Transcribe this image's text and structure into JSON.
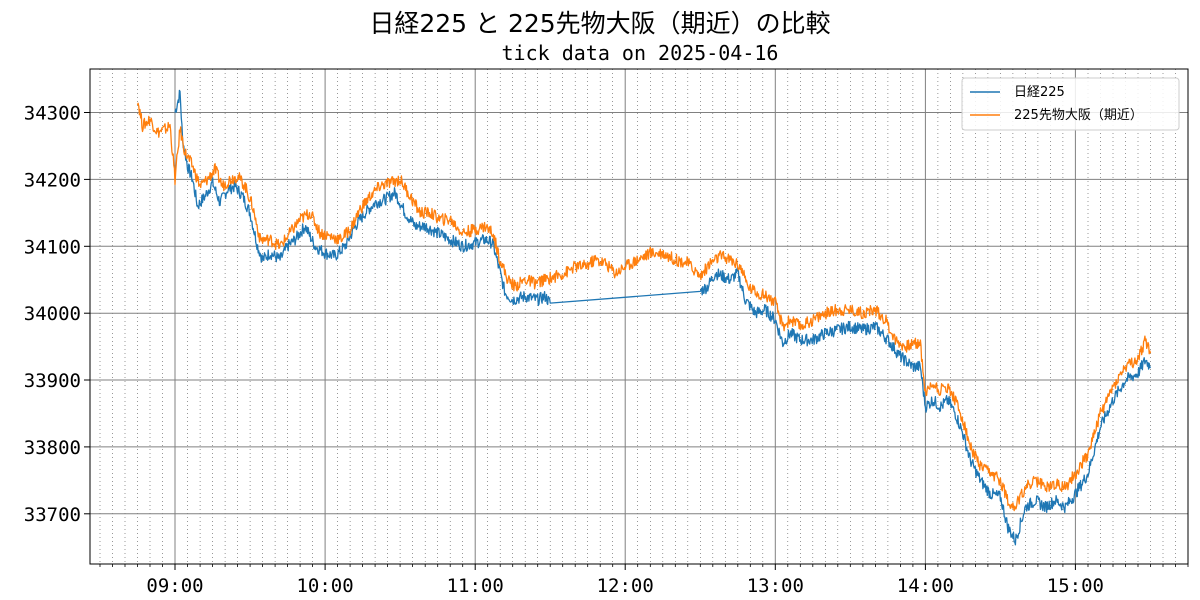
{
  "chart_data": {
    "type": "line",
    "title": "日経225 と 225先物大阪（期近）の比較",
    "subtitle": "tick data on 2025-04-16",
    "xlabel": "",
    "ylabel": "",
    "x_ticks": [
      "09:00",
      "10:00",
      "11:00",
      "12:00",
      "13:00",
      "14:00",
      "15:00"
    ],
    "y_ticks": [
      33700,
      33800,
      33900,
      34000,
      34100,
      34200,
      34300
    ],
    "xlim": [
      "08:26",
      "15:45"
    ],
    "ylim": [
      33625,
      34365
    ],
    "grid": true,
    "minor_grid": "x every 5 min (dotted)",
    "legend_position": "top-right",
    "series": [
      {
        "name": "日経225",
        "color": "#1f77b4",
        "points": [
          [
            "09:00",
            34300
          ],
          [
            "09:02",
            34330
          ],
          [
            "09:03",
            34260
          ],
          [
            "09:05",
            34220
          ],
          [
            "09:07",
            34200
          ],
          [
            "09:09",
            34160
          ],
          [
            "09:12",
            34175
          ],
          [
            "09:15",
            34195
          ],
          [
            "09:18",
            34165
          ],
          [
            "09:21",
            34185
          ],
          [
            "09:24",
            34190
          ],
          [
            "09:27",
            34175
          ],
          [
            "09:30",
            34150
          ],
          [
            "09:33",
            34100
          ],
          [
            "09:35",
            34080
          ],
          [
            "09:38",
            34090
          ],
          [
            "09:42",
            34080
          ],
          [
            "09:45",
            34100
          ],
          [
            "09:48",
            34110
          ],
          [
            "09:52",
            34130
          ],
          [
            "09:56",
            34100
          ],
          [
            "10:00",
            34090
          ],
          [
            "10:04",
            34085
          ],
          [
            "10:08",
            34100
          ],
          [
            "10:12",
            34130
          ],
          [
            "10:16",
            34150
          ],
          [
            "10:20",
            34165
          ],
          [
            "10:24",
            34170
          ],
          [
            "10:28",
            34180
          ],
          [
            "10:32",
            34150
          ],
          [
            "10:36",
            34130
          ],
          [
            "10:40",
            34130
          ],
          [
            "10:45",
            34120
          ],
          [
            "10:50",
            34110
          ],
          [
            "10:55",
            34100
          ],
          [
            "11:00",
            34105
          ],
          [
            "11:04",
            34110
          ],
          [
            "11:07",
            34105
          ],
          [
            "11:10",
            34060
          ],
          [
            "11:12",
            34030
          ],
          [
            "11:15",
            34020
          ],
          [
            "11:20",
            34025
          ],
          [
            "11:25",
            34020
          ],
          [
            "11:28",
            34025
          ],
          [
            "11:30",
            34015
          ],
          [
            "12:30",
            34033
          ],
          [
            "12:33",
            34040
          ],
          [
            "12:36",
            34060
          ],
          [
            "12:39",
            34055
          ],
          [
            "12:42",
            34050
          ],
          [
            "12:45",
            34060
          ],
          [
            "12:48",
            34020
          ],
          [
            "12:52",
            34000
          ],
          [
            "12:56",
            34005
          ],
          [
            "13:00",
            33990
          ],
          [
            "13:03",
            33955
          ],
          [
            "13:06",
            33970
          ],
          [
            "13:10",
            33960
          ],
          [
            "13:15",
            33960
          ],
          [
            "13:20",
            33970
          ],
          [
            "13:25",
            33975
          ],
          [
            "13:30",
            33980
          ],
          [
            "13:35",
            33975
          ],
          [
            "13:40",
            33980
          ],
          [
            "13:45",
            33960
          ],
          [
            "13:50",
            33935
          ],
          [
            "13:55",
            33920
          ],
          [
            "13:58",
            33920
          ],
          [
            "14:00",
            33860
          ],
          [
            "14:03",
            33870
          ],
          [
            "14:06",
            33860
          ],
          [
            "14:09",
            33870
          ],
          [
            "14:12",
            33850
          ],
          [
            "14:15",
            33820
          ],
          [
            "14:18",
            33780
          ],
          [
            "14:22",
            33750
          ],
          [
            "14:26",
            33730
          ],
          [
            "14:30",
            33725
          ],
          [
            "14:33",
            33680
          ],
          [
            "14:36",
            33660
          ],
          [
            "14:40",
            33710
          ],
          [
            "14:44",
            33720
          ],
          [
            "14:48",
            33710
          ],
          [
            "14:52",
            33720
          ],
          [
            "14:56",
            33710
          ],
          [
            "15:00",
            33730
          ],
          [
            "15:05",
            33760
          ],
          [
            "15:10",
            33830
          ],
          [
            "15:15",
            33870
          ],
          [
            "15:20",
            33900
          ],
          [
            "15:25",
            33910
          ],
          [
            "15:28",
            33930
          ],
          [
            "15:30",
            33920
          ]
        ]
      },
      {
        "name": "225先物大阪（期近）",
        "color": "#ff7f0e",
        "points": [
          [
            "08:45",
            34320
          ],
          [
            "08:47",
            34280
          ],
          [
            "08:50",
            34290
          ],
          [
            "08:53",
            34270
          ],
          [
            "08:56",
            34275
          ],
          [
            "08:58",
            34280
          ],
          [
            "09:00",
            34200
          ],
          [
            "09:02",
            34275
          ],
          [
            "09:04",
            34240
          ],
          [
            "09:07",
            34220
          ],
          [
            "09:10",
            34190
          ],
          [
            "09:13",
            34200
          ],
          [
            "09:16",
            34215
          ],
          [
            "09:19",
            34190
          ],
          [
            "09:22",
            34200
          ],
          [
            "09:25",
            34205
          ],
          [
            "09:28",
            34190
          ],
          [
            "09:31",
            34160
          ],
          [
            "09:34",
            34110
          ],
          [
            "09:38",
            34110
          ],
          [
            "09:42",
            34100
          ],
          [
            "09:46",
            34120
          ],
          [
            "09:50",
            34140
          ],
          [
            "09:54",
            34150
          ],
          [
            "09:58",
            34120
          ],
          [
            "10:02",
            34115
          ],
          [
            "10:06",
            34110
          ],
          [
            "10:10",
            34125
          ],
          [
            "10:14",
            34155
          ],
          [
            "10:18",
            34175
          ],
          [
            "10:22",
            34190
          ],
          [
            "10:26",
            34195
          ],
          [
            "10:30",
            34200
          ],
          [
            "10:34",
            34175
          ],
          [
            "10:38",
            34150
          ],
          [
            "10:42",
            34150
          ],
          [
            "10:46",
            34140
          ],
          [
            "10:50",
            34140
          ],
          [
            "10:55",
            34120
          ],
          [
            "11:00",
            34125
          ],
          [
            "11:04",
            34130
          ],
          [
            "11:07",
            34120
          ],
          [
            "11:10",
            34080
          ],
          [
            "11:13",
            34050
          ],
          [
            "11:16",
            34040
          ],
          [
            "11:20",
            34050
          ],
          [
            "11:24",
            34045
          ],
          [
            "11:28",
            34050
          ],
          [
            "11:32",
            34055
          ],
          [
            "11:36",
            34060
          ],
          [
            "11:40",
            34070
          ],
          [
            "11:44",
            34070
          ],
          [
            "11:48",
            34080
          ],
          [
            "11:52",
            34075
          ],
          [
            "11:56",
            34060
          ],
          [
            "12:00",
            34070
          ],
          [
            "12:05",
            34080
          ],
          [
            "12:10",
            34090
          ],
          [
            "12:15",
            34090
          ],
          [
            "12:20",
            34080
          ],
          [
            "12:25",
            34075
          ],
          [
            "12:30",
            34055
          ],
          [
            "12:34",
            34075
          ],
          [
            "12:38",
            34085
          ],
          [
            "12:42",
            34080
          ],
          [
            "12:46",
            34070
          ],
          [
            "12:49",
            34040
          ],
          [
            "12:53",
            34030
          ],
          [
            "12:57",
            34025
          ],
          [
            "13:00",
            34015
          ],
          [
            "13:03",
            33980
          ],
          [
            "13:06",
            33990
          ],
          [
            "13:10",
            33980
          ],
          [
            "13:15",
            33990
          ],
          [
            "13:20",
            34000
          ],
          [
            "13:25",
            34005
          ],
          [
            "13:30",
            34005
          ],
          [
            "13:35",
            34000
          ],
          [
            "13:40",
            34005
          ],
          [
            "13:44",
            33990
          ],
          [
            "13:48",
            33960
          ],
          [
            "13:52",
            33950
          ],
          [
            "13:56",
            33955
          ],
          [
            "13:58",
            33955
          ],
          [
            "14:00",
            33880
          ],
          [
            "14:03",
            33895
          ],
          [
            "14:06",
            33885
          ],
          [
            "14:09",
            33890
          ],
          [
            "14:12",
            33870
          ],
          [
            "14:15",
            33840
          ],
          [
            "14:18",
            33800
          ],
          [
            "14:22",
            33770
          ],
          [
            "14:26",
            33760
          ],
          [
            "14:30",
            33750
          ],
          [
            "14:33",
            33720
          ],
          [
            "14:36",
            33710
          ],
          [
            "14:40",
            33740
          ],
          [
            "14:44",
            33750
          ],
          [
            "14:48",
            33740
          ],
          [
            "14:52",
            33745
          ],
          [
            "14:56",
            33740
          ],
          [
            "15:00",
            33760
          ],
          [
            "15:05",
            33790
          ],
          [
            "15:10",
            33850
          ],
          [
            "15:15",
            33890
          ],
          [
            "15:20",
            33920
          ],
          [
            "15:25",
            33930
          ],
          [
            "15:28",
            33960
          ],
          [
            "15:30",
            33940
          ]
        ]
      }
    ]
  }
}
